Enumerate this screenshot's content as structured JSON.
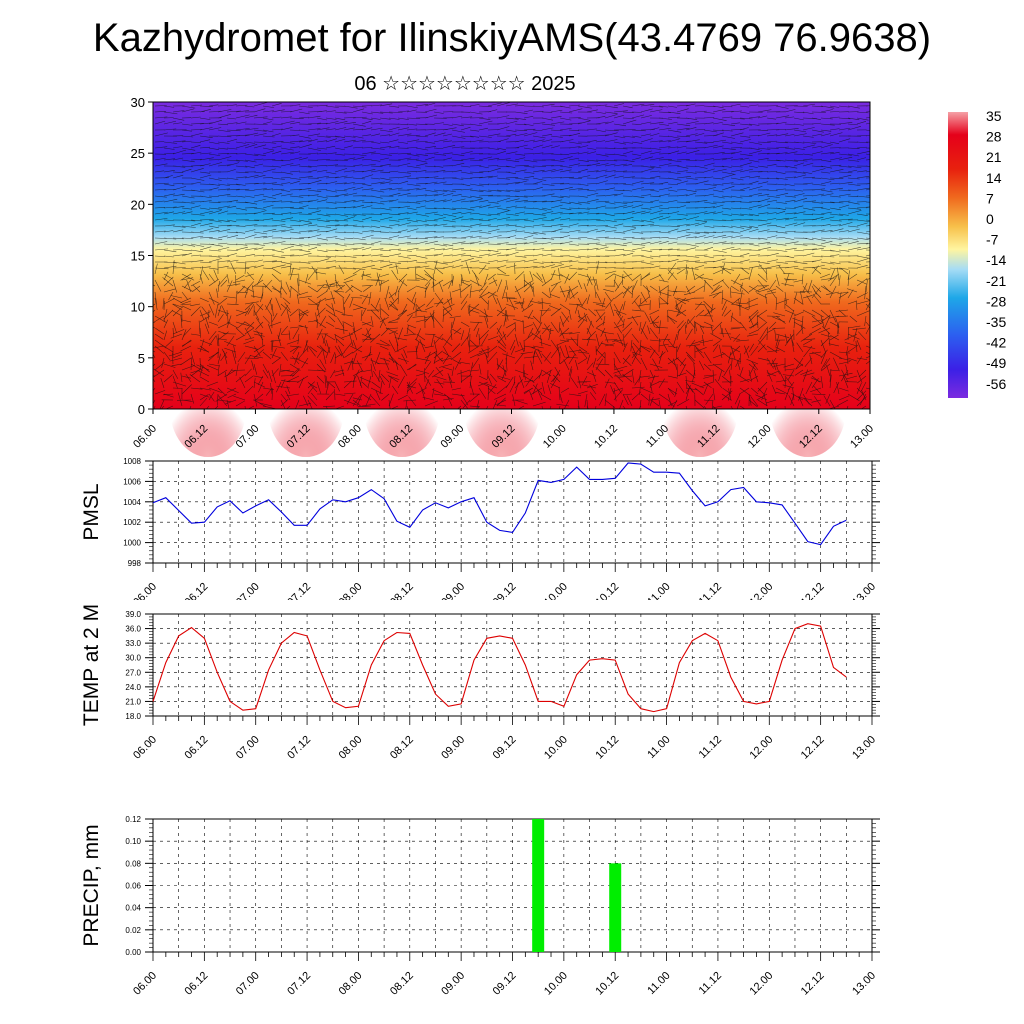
{
  "title": "Kazhydromet for IlinskiyAMS(43.4769 76.9638)",
  "subtitle": "06 ☆☆☆☆☆☆☆☆ 2025",
  "time_labels": [
    "06.00",
    "06.12",
    "07.00",
    "07.12",
    "08.00",
    "08.12",
    "09.00",
    "09.12",
    "10.00",
    "10.12",
    "11.00",
    "11.12",
    "12.00",
    "12.12",
    "13.00"
  ],
  "colorbar": {
    "labels": [
      "35",
      "28",
      "21",
      "14",
      "7",
      "0",
      "-7",
      "-14",
      "-21",
      "-28",
      "-35",
      "-42",
      "-49",
      "-56"
    ]
  },
  "chart_data": [
    {
      "type": "heatmap",
      "name": "cross-section",
      "ylabel": "",
      "ylim": [
        0,
        30
      ],
      "yticks": [
        0,
        5,
        10,
        15,
        20,
        25,
        30
      ],
      "xlim": [
        0,
        168
      ],
      "colors": [
        "#7b2be0",
        "#3b20e6",
        "#2c5ff0",
        "#1ea7e8",
        "#a6dcf5",
        "#fff5a0",
        "#f7c04a",
        "#f06a1e",
        "#e8210e",
        "#e5001a",
        "#f5a0a6"
      ]
    },
    {
      "type": "line",
      "name": "pmsl",
      "ylabel": "PMSL",
      "ylim": [
        998,
        1008
      ],
      "yticks": [
        998,
        1000,
        1002,
        1004,
        1006,
        1008
      ],
      "color": "#0000dd",
      "x": [
        0,
        3,
        9,
        12,
        15,
        18,
        21,
        24,
        27,
        30,
        33,
        36,
        39,
        42,
        45,
        48,
        51,
        54,
        57,
        60,
        63,
        66,
        69,
        72,
        75,
        78,
        81,
        84,
        87,
        90,
        93,
        96,
        99,
        102,
        105,
        108,
        111,
        114,
        117,
        120,
        123,
        126,
        129,
        132,
        135,
        138,
        141,
        144,
        147,
        150,
        153,
        156,
        159,
        162
      ],
      "y": [
        1003.9,
        1004.4,
        1001.9,
        1002.0,
        1003.5,
        1004.1,
        1002.9,
        1003.6,
        1004.2,
        1003.0,
        1001.7,
        1001.7,
        1003.3,
        1004.2,
        1004.0,
        1004.4,
        1005.2,
        1004.3,
        1002.1,
        1001.5,
        1003.2,
        1003.9,
        1003.4,
        1004.0,
        1004.4,
        1002.0,
        1001.2,
        1001.0,
        1002.9,
        1006.1,
        1005.9,
        1006.2,
        1007.4,
        1006.2,
        1006.2,
        1006.3,
        1007.8,
        1007.7,
        1006.9,
        1006.9,
        1006.8,
        1005.1,
        1003.6,
        1004.0,
        1005.2,
        1005.4,
        1004.0,
        1003.9,
        1003.7,
        1001.9,
        1000.1,
        999.8,
        1001.6,
        1002.2
      ]
    },
    {
      "type": "line",
      "name": "temp",
      "ylabel": "TEMP at 2 M",
      "ylim": [
        18,
        39
      ],
      "yticks": [
        "18.0",
        "21.0",
        "24.0",
        "27.0",
        "30.0",
        "33.0",
        "36.0",
        "39.0"
      ],
      "color": "#dd0000",
      "x": [
        0,
        3,
        6,
        9,
        12,
        15,
        18,
        21,
        24,
        27,
        30,
        33,
        36,
        39,
        42,
        45,
        48,
        51,
        54,
        57,
        60,
        63,
        66,
        69,
        72,
        75,
        78,
        81,
        84,
        87,
        90,
        93,
        96,
        99,
        102,
        105,
        108,
        111,
        114,
        117,
        120,
        123,
        126,
        129,
        132,
        135,
        138,
        141,
        144,
        147,
        150,
        153,
        156,
        159,
        162
      ],
      "y": [
        21.0,
        29.0,
        34.5,
        36.2,
        34.0,
        27.0,
        21.0,
        19.2,
        19.5,
        27.5,
        33.0,
        35.2,
        34.5,
        27.5,
        21.0,
        19.7,
        20.0,
        28.5,
        33.5,
        35.2,
        35.0,
        28.5,
        22.5,
        20.0,
        20.5,
        29.5,
        34.0,
        34.5,
        34.0,
        28.5,
        21.0,
        21.0,
        20.0,
        26.5,
        29.5,
        29.8,
        29.5,
        22.5,
        19.5,
        18.9,
        19.5,
        29.0,
        33.5,
        35.0,
        33.5,
        26.0,
        21.0,
        20.5,
        21.0,
        29.5,
        36.0,
        37.0,
        36.5,
        28.0,
        26.0
      ]
    },
    {
      "type": "bar",
      "name": "precip",
      "ylabel": "PRECIP, mm",
      "ylim": [
        0,
        0.12
      ],
      "yticks": [
        "0.00",
        "0.02",
        "0.04",
        "0.06",
        "0.08",
        "0.10",
        "0.12"
      ],
      "color": "#00ee00",
      "x": [
        90,
        108
      ],
      "values": [
        0.12,
        0.08
      ]
    }
  ]
}
